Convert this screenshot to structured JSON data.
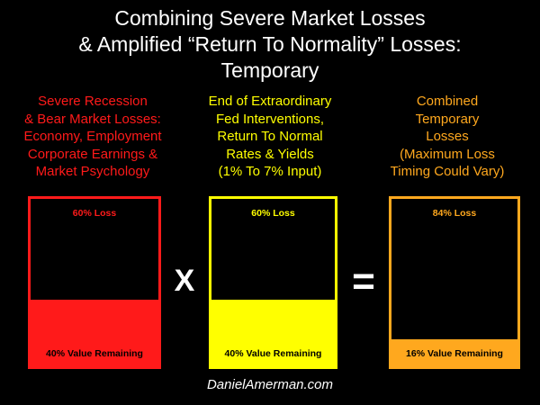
{
  "title": {
    "lines": [
      "Combining Severe Market Losses",
      "& Amplified “Return To Normality” Losses:",
      "Temporary"
    ]
  },
  "colors": {
    "red": "#ff1a1a",
    "yellow": "#ffff00",
    "orange": "#ffa81e"
  },
  "columns": [
    {
      "text_lines": [
        "Severe Recession",
        "& Bear Market Losses:",
        "Economy, Employment",
        "Corporate Earnings &",
        "Market Psychology"
      ],
      "loss_label": "60% Loss",
      "remaining_label": "40% Value Remaining",
      "remaining_fraction": 0.4,
      "color": "#ff1a1a"
    },
    {
      "text_lines": [
        "End of Extraordinary",
        "Fed Interventions,",
        "Return To Normal",
        "Rates & Yields",
        "(1% To 7% Input)"
      ],
      "loss_label": "60% Loss",
      "remaining_label": "40% Value Remaining",
      "remaining_fraction": 0.4,
      "color": "#ffff00"
    },
    {
      "text_lines": [
        "Combined",
        "Temporary",
        "Losses",
        "(Maximum Loss",
        "Timing Could Vary)"
      ],
      "loss_label": "84% Loss",
      "remaining_label": "16% Value Remaining",
      "remaining_fraction": 0.16,
      "color": "#ffa81e"
    }
  ],
  "operators": {
    "multiply": "X",
    "equals": "="
  },
  "footer": "DanielAmerman.com"
}
